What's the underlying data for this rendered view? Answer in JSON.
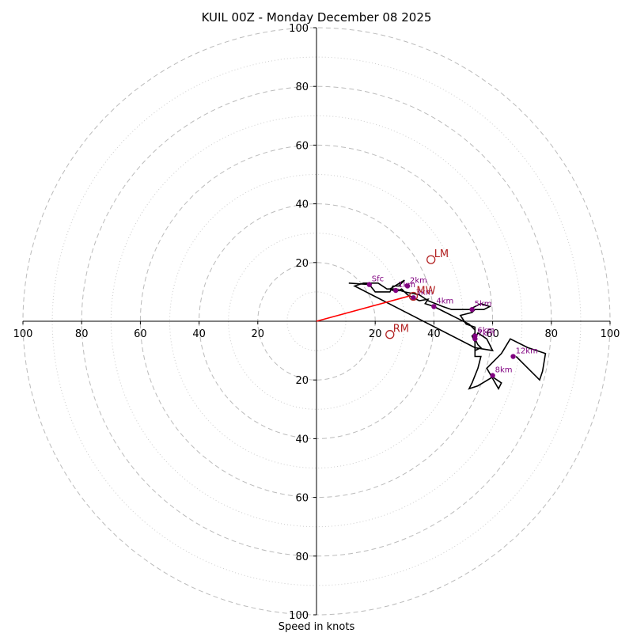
{
  "chart_data": {
    "type": "hodograph",
    "title": "KUIL 00Z - Monday December 08 2025",
    "xlabel": "Speed in knots",
    "units": "kt",
    "ring_major": [
      20,
      40,
      60,
      80,
      100
    ],
    "ring_minor": [
      10,
      30,
      50,
      70,
      90
    ],
    "x_ticks": [
      "100",
      "80",
      "60",
      "40",
      "20",
      "20",
      "40",
      "60",
      "80",
      "100"
    ],
    "y_ticks": [
      "100",
      "80",
      "60",
      "40",
      "20",
      "20",
      "40",
      "60",
      "80",
      "100"
    ],
    "trace": [
      [
        11,
        13
      ],
      [
        18,
        12.5
      ],
      [
        20,
        10
      ],
      [
        25,
        10
      ],
      [
        26,
        12
      ],
      [
        28,
        12
      ],
      [
        30,
        14
      ],
      [
        25,
        11
      ],
      [
        27,
        10
      ],
      [
        29,
        11
      ],
      [
        31,
        9
      ],
      [
        33,
        8
      ],
      [
        35,
        7
      ],
      [
        38,
        7.5
      ],
      [
        37,
        6
      ],
      [
        40,
        5
      ],
      [
        44,
        3
      ],
      [
        48,
        1
      ],
      [
        50,
        0
      ],
      [
        52,
        -1
      ],
      [
        54,
        -3
      ],
      [
        54,
        -6
      ],
      [
        55,
        -8
      ],
      [
        56,
        -9
      ],
      [
        54,
        -10
      ],
      [
        54,
        -6
      ],
      [
        55,
        -4
      ],
      [
        58,
        -6
      ],
      [
        59,
        -8
      ],
      [
        60,
        -10
      ],
      [
        54,
        -9
      ],
      [
        54,
        -7
      ],
      [
        53,
        -5
      ],
      [
        54,
        -4
      ],
      [
        54,
        -2
      ],
      [
        51,
        -1
      ],
      [
        49,
        2
      ],
      [
        53,
        3
      ],
      [
        54,
        4
      ],
      [
        57,
        4
      ],
      [
        59,
        5
      ],
      [
        56,
        6
      ],
      [
        52,
        4
      ],
      [
        46,
        4
      ],
      [
        43,
        5
      ],
      [
        38,
        7
      ],
      [
        35,
        9
      ],
      [
        30,
        10
      ],
      [
        27,
        11
      ],
      [
        24,
        11
      ],
      [
        21,
        13
      ],
      [
        16,
        13
      ],
      [
        13,
        12
      ],
      [
        54,
        -9
      ],
      [
        54,
        -12
      ],
      [
        56,
        -12
      ],
      [
        55,
        -16
      ],
      [
        53,
        -21
      ],
      [
        52,
        -23
      ],
      [
        55,
        -22
      ],
      [
        60,
        -19
      ],
      [
        63,
        -21
      ],
      [
        62,
        -23
      ],
      [
        58,
        -16
      ],
      [
        63,
        -11
      ],
      [
        66,
        -6
      ],
      [
        72,
        -9
      ],
      [
        78,
        -11
      ],
      [
        77,
        -17
      ],
      [
        76,
        -20
      ],
      [
        70,
        -14
      ],
      [
        68,
        -12
      ]
    ],
    "height_markers": [
      {
        "label": "Sfc",
        "u": 18,
        "v": 12.5
      },
      {
        "label": "1km",
        "u": 27,
        "v": 10.5
      },
      {
        "label": "2km",
        "u": 31,
        "v": 12
      },
      {
        "label": "3km",
        "u": 33,
        "v": 8
      },
      {
        "label": "4km",
        "u": 40,
        "v": 5
      },
      {
        "label": "5km",
        "u": 53,
        "v": 4
      },
      {
        "label": "6km",
        "u": 54,
        "v": -5
      },
      {
        "label": "7km",
        "u": 54,
        "v": -6
      },
      {
        "label": "8km",
        "u": 60,
        "v": -18.5
      },
      {
        "label": "12km",
        "u": 67,
        "v": -12
      }
    ],
    "storm_motion": [
      {
        "label": "LM",
        "u": 39,
        "v": 21
      },
      {
        "label": "RM",
        "u": 25,
        "v": -4.5
      },
      {
        "label": "MW",
        "u": 33,
        "v": 8.5
      }
    ],
    "shear_vector": {
      "u": 32,
      "v": 8.7
    },
    "colors": {
      "trace": "#000000",
      "markers": "#800080",
      "storm": "#b22222",
      "vector": "#ff0000",
      "grid": "#bbbbbb"
    }
  }
}
